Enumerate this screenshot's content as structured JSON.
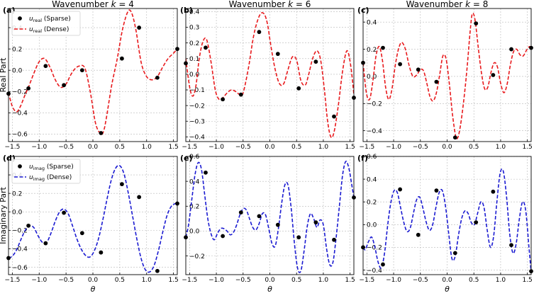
{
  "chart_data": [
    {
      "panel": "(a)",
      "type": "line",
      "title": "Wavenumber k = 4",
      "title_parts": [
        "Wavenumber ",
        "k",
        " = 4"
      ],
      "xlabel": "",
      "ylabel": "Real Part",
      "xlim": [
        -1.571,
        1.571
      ],
      "ylim": [
        -0.67,
        0.58
      ],
      "xticks": [
        -1.5,
        -1.0,
        -0.5,
        0.0,
        0.5,
        1.0,
        1.5
      ],
      "yticks": [
        -0.6,
        -0.4,
        -0.2,
        0.0,
        0.2,
        0.4
      ],
      "grid": true,
      "legend": "top-left",
      "dense": {
        "name": "u_real (Dense)",
        "name_parts": [
          "u",
          "real",
          " (Dense)"
        ],
        "color": "#e8191c",
        "x": [
          -1.571,
          -1.5,
          -1.42,
          -1.35,
          -1.27,
          -1.2,
          -1.1,
          -1.0,
          -0.9,
          -0.8,
          -0.7,
          -0.6,
          -0.5,
          -0.42,
          -0.34,
          -0.25,
          -0.15,
          -0.05,
          0.05,
          0.15,
          0.2,
          0.25,
          0.35,
          0.45,
          0.55,
          0.65,
          0.72,
          0.8,
          0.9,
          1.0,
          1.1,
          1.2,
          1.3,
          1.4,
          1.5,
          1.571
        ],
        "y": [
          -0.21,
          -0.34,
          -0.39,
          -0.34,
          -0.24,
          -0.16,
          -0.03,
          0.08,
          0.11,
          0.03,
          -0.09,
          -0.16,
          -0.13,
          -0.05,
          0.01,
          0.04,
          0.02,
          -0.2,
          -0.5,
          -0.6,
          -0.57,
          -0.45,
          -0.14,
          0.1,
          0.38,
          0.55,
          0.54,
          0.38,
          0.07,
          -0.06,
          -0.09,
          -0.06,
          0.03,
          0.11,
          0.16,
          0.2
        ]
      },
      "sparse": {
        "name": "u_real (Sparse)",
        "name_parts": [
          "u",
          "real",
          " (Sparse)"
        ],
        "color": "#000000",
        "x": [
          -1.571,
          -1.2,
          -0.88,
          -0.54,
          -0.2,
          0.15,
          0.54,
          0.86,
          1.2,
          1.571
        ],
        "y": [
          -0.22,
          -0.17,
          0.04,
          -0.14,
          0.0,
          -0.59,
          0.11,
          0.4,
          -0.07,
          0.2
        ]
      }
    },
    {
      "panel": "(b)",
      "type": "line",
      "title": "Wavenumber k = 6",
      "title_parts": [
        "Wavenumber ",
        "k",
        " = 6"
      ],
      "xlabel": "",
      "ylabel": "",
      "xlim": [
        -1.571,
        1.571
      ],
      "ylim": [
        -0.43,
        0.42
      ],
      "xticks": [
        -1.5,
        -1.0,
        -0.5,
        0.0,
        0.5,
        1.0,
        1.5
      ],
      "yticks": [
        -0.4,
        -0.3,
        -0.2,
        -0.1,
        0.0,
        0.1,
        0.2,
        0.3,
        0.4
      ],
      "grid": true,
      "legend": "",
      "dense": {
        "name": "",
        "color": "#e8191c",
        "x": [
          -1.571,
          -1.5,
          -1.44,
          -1.38,
          -1.32,
          -1.25,
          -1.18,
          -1.1,
          -1.02,
          -0.95,
          -0.88,
          -0.8,
          -0.72,
          -0.64,
          -0.56,
          -0.5,
          -0.4,
          -0.3,
          -0.2,
          -0.12,
          -0.05,
          0.02,
          0.1,
          0.18,
          0.26,
          0.34,
          0.42,
          0.5,
          0.58,
          0.66,
          0.72,
          0.8,
          0.88,
          0.95,
          1.02,
          1.08,
          1.14,
          1.2,
          1.28,
          1.36,
          1.44,
          1.51,
          1.571
        ],
        "y": [
          0.1,
          -0.08,
          -0.14,
          -0.07,
          0.1,
          0.21,
          0.22,
          0.08,
          -0.1,
          -0.16,
          -0.15,
          -0.12,
          -0.1,
          -0.11,
          -0.13,
          -0.12,
          0.04,
          0.25,
          0.37,
          0.39,
          0.33,
          0.18,
          0.03,
          -0.06,
          -0.06,
          0.03,
          0.11,
          0.09,
          -0.04,
          -0.07,
          -0.01,
          0.1,
          0.15,
          0.09,
          -0.1,
          -0.3,
          -0.4,
          -0.37,
          -0.2,
          0.02,
          0.15,
          0.06,
          -0.13
        ]
      },
      "sparse": {
        "name": "",
        "color": "#000000",
        "x": [
          -1.571,
          -1.2,
          -0.88,
          -0.54,
          -0.2,
          0.15,
          0.54,
          0.86,
          1.2,
          1.571
        ],
        "y": [
          0.07,
          0.17,
          -0.16,
          -0.13,
          0.27,
          0.13,
          -0.09,
          0.08,
          -0.27,
          -0.15
        ]
      }
    },
    {
      "panel": "(c)",
      "type": "line",
      "title": "Wavenumber k = 8",
      "title_parts": [
        "Wavenumber ",
        "k",
        " = 8"
      ],
      "xlabel": "",
      "ylabel": "",
      "xlim": [
        -1.571,
        1.571
      ],
      "ylim": [
        -0.48,
        0.5
      ],
      "xticks": [
        -1.5,
        -1.0,
        -0.5,
        0.0,
        0.5,
        1.0,
        1.5
      ],
      "yticks": [
        -0.4,
        -0.2,
        0.0,
        0.2,
        0.4
      ],
      "grid": true,
      "legend": "",
      "dense": {
        "name": "",
        "color": "#e8191c",
        "x": [
          -1.571,
          -1.51,
          -1.45,
          -1.39,
          -1.33,
          -1.27,
          -1.21,
          -1.15,
          -1.09,
          -1.03,
          -0.97,
          -0.91,
          -0.85,
          -0.78,
          -0.71,
          -0.64,
          -0.57,
          -0.5,
          -0.44,
          -0.38,
          -0.32,
          -0.26,
          -0.2,
          -0.14,
          -0.08,
          -0.02,
          0.04,
          0.1,
          0.16,
          0.2,
          0.25,
          0.31,
          0.37,
          0.43,
          0.47,
          0.52,
          0.58,
          0.64,
          0.7,
          0.76,
          0.82,
          0.88,
          0.94,
          1.0,
          1.06,
          1.12,
          1.18,
          1.24,
          1.3,
          1.36,
          1.42,
          1.48,
          1.54,
          1.571
        ],
        "y": [
          0.1,
          -0.12,
          -0.17,
          -0.04,
          0.15,
          0.22,
          0.12,
          -0.08,
          -0.17,
          -0.09,
          0.08,
          0.2,
          0.25,
          0.2,
          0.08,
          0.0,
          0.01,
          0.05,
          0.04,
          -0.05,
          -0.15,
          -0.18,
          -0.12,
          0.01,
          0.15,
          0.13,
          -0.05,
          -0.28,
          -0.44,
          -0.45,
          -0.36,
          -0.18,
          0.05,
          0.33,
          0.46,
          0.42,
          0.22,
          0.03,
          -0.09,
          -0.08,
          0.03,
          0.1,
          0.07,
          -0.05,
          -0.12,
          -0.06,
          0.08,
          0.18,
          0.2,
          0.16,
          0.15,
          0.19,
          0.22,
          0.2
        ]
      },
      "sparse": {
        "name": "",
        "color": "#000000",
        "x": [
          -1.571,
          -1.2,
          -0.88,
          -0.54,
          -0.2,
          0.15,
          0.54,
          0.86,
          1.2,
          1.571
        ],
        "y": [
          0.1,
          0.21,
          0.09,
          0.05,
          -0.04,
          -0.45,
          0.39,
          0.01,
          0.2,
          0.21
        ]
      }
    },
    {
      "panel": "(d)",
      "type": "line",
      "title": "",
      "xlabel": "θ",
      "ylabel": "Imaginary Part",
      "xlim": [
        -1.571,
        1.571
      ],
      "ylim": [
        -0.68,
        0.6
      ],
      "xticks": [
        -1.5,
        -1.0,
        -0.5,
        0.0,
        0.5,
        1.0,
        1.5
      ],
      "yticks": [
        -0.6,
        -0.4,
        -0.2,
        0.0,
        0.2,
        0.4
      ],
      "grid": true,
      "legend": "top-left",
      "dense": {
        "name": "u_imag (Dense)",
        "name_parts": [
          "u",
          "imag",
          " (Dense)"
        ],
        "color": "#1a1ad1",
        "x": [
          -1.571,
          -1.5,
          -1.42,
          -1.34,
          -1.26,
          -1.18,
          -1.1,
          -1.02,
          -0.94,
          -0.86,
          -0.78,
          -0.7,
          -0.62,
          -0.54,
          -0.46,
          -0.38,
          -0.3,
          -0.22,
          -0.14,
          -0.06,
          0.02,
          0.1,
          0.18,
          0.26,
          0.34,
          0.42,
          0.5,
          0.58,
          0.66,
          0.74,
          0.82,
          0.9,
          0.98,
          1.06,
          1.14,
          1.22,
          1.3,
          1.38,
          1.46,
          1.54,
          1.571
        ],
        "y": [
          -0.5,
          -0.48,
          -0.41,
          -0.3,
          -0.2,
          -0.15,
          -0.17,
          -0.26,
          -0.33,
          -0.33,
          -0.23,
          -0.1,
          0.0,
          0.03,
          -0.02,
          -0.15,
          -0.29,
          -0.4,
          -0.47,
          -0.49,
          -0.43,
          -0.3,
          -0.1,
          0.13,
          0.34,
          0.47,
          0.5,
          0.41,
          0.2,
          -0.05,
          -0.3,
          -0.51,
          -0.63,
          -0.65,
          -0.58,
          -0.42,
          -0.22,
          -0.04,
          0.06,
          0.09,
          0.09
        ]
      },
      "sparse": {
        "name": "u_imag (Sparse)",
        "name_parts": [
          "u",
          "imag",
          " (Sparse)"
        ],
        "color": "#000000",
        "x": [
          -1.571,
          -1.2,
          -0.88,
          -0.54,
          -0.2,
          0.15,
          0.54,
          0.86,
          1.2,
          1.571
        ],
        "y": [
          -0.5,
          -0.15,
          -0.34,
          -0.01,
          -0.23,
          -0.44,
          0.3,
          0.16,
          -0.64,
          0.09
        ]
      }
    },
    {
      "panel": "(e)",
      "type": "line",
      "title": "",
      "xlabel": "θ",
      "ylabel": "",
      "xlim": [
        -1.571,
        1.571
      ],
      "ylim": [
        -0.35,
        0.6
      ],
      "xticks": [
        -1.5,
        -1.0,
        -0.5,
        0.0,
        0.5,
        1.0,
        1.5
      ],
      "yticks": [
        -0.2,
        0.0,
        0.2,
        0.4,
        0.6
      ],
      "grid": true,
      "legend": "",
      "dense": {
        "name": "",
        "color": "#1a1ad1",
        "x": [
          -1.571,
          -1.52,
          -1.46,
          -1.4,
          -1.34,
          -1.28,
          -1.22,
          -1.16,
          -1.1,
          -1.04,
          -0.98,
          -0.92,
          -0.86,
          -0.8,
          -0.74,
          -0.68,
          -0.62,
          -0.56,
          -0.5,
          -0.44,
          -0.38,
          -0.32,
          -0.26,
          -0.2,
          -0.14,
          -0.08,
          -0.02,
          0.04,
          0.1,
          0.16,
          0.22,
          0.28,
          0.34,
          0.4,
          0.46,
          0.52,
          0.58,
          0.64,
          0.7,
          0.76,
          0.82,
          0.88,
          0.94,
          1.0,
          1.06,
          1.12,
          1.18,
          1.24,
          1.3,
          1.36,
          1.42,
          1.48,
          1.54,
          1.571
        ],
        "y": [
          -0.05,
          0.05,
          0.25,
          0.45,
          0.55,
          0.5,
          0.3,
          0.1,
          -0.02,
          -0.07,
          -0.02,
          0.02,
          0.02,
          0.0,
          -0.03,
          -0.01,
          0.05,
          0.13,
          0.18,
          0.17,
          0.1,
          0.03,
          0.01,
          0.06,
          0.14,
          0.13,
          0.02,
          -0.1,
          -0.12,
          0.02,
          0.22,
          0.37,
          0.37,
          0.18,
          -0.1,
          -0.3,
          -0.32,
          -0.16,
          0.04,
          0.14,
          0.1,
          0.03,
          0.09,
          0.05,
          -0.14,
          -0.27,
          -0.25,
          -0.05,
          0.2,
          0.45,
          0.56,
          0.5,
          0.35,
          0.27
        ]
      },
      "sparse": {
        "name": "",
        "color": "#000000",
        "x": [
          -1.571,
          -1.2,
          -0.88,
          -0.54,
          -0.2,
          0.15,
          0.54,
          0.86,
          1.2,
          1.571
        ],
        "y": [
          -0.05,
          0.47,
          -0.04,
          0.15,
          0.12,
          0.05,
          -0.05,
          0.07,
          -0.07,
          0.27
        ]
      }
    },
    {
      "panel": "(f)",
      "type": "line",
      "title": "",
      "xlabel": "θ",
      "ylabel": "",
      "xlim": [
        -1.571,
        1.571
      ],
      "ylim": [
        -0.44,
        0.6
      ],
      "xticks": [
        -1.5,
        -1.0,
        -0.5,
        0.0,
        0.5,
        1.0,
        1.5
      ],
      "yticks": [
        -0.4,
        -0.2,
        0.0,
        0.2,
        0.4,
        0.6
      ],
      "grid": true,
      "legend": "",
      "dense": {
        "name": "",
        "color": "#1a1ad1",
        "x": [
          -1.571,
          -1.53,
          -1.47,
          -1.41,
          -1.35,
          -1.29,
          -1.23,
          -1.17,
          -1.11,
          -1.05,
          -0.99,
          -0.93,
          -0.87,
          -0.81,
          -0.75,
          -0.69,
          -0.63,
          -0.57,
          -0.51,
          -0.45,
          -0.39,
          -0.33,
          -0.27,
          -0.21,
          -0.15,
          -0.09,
          -0.03,
          0.03,
          0.09,
          0.15,
          0.21,
          0.27,
          0.33,
          0.39,
          0.45,
          0.51,
          0.57,
          0.63,
          0.69,
          0.75,
          0.81,
          0.87,
          0.93,
          0.99,
          1.05,
          1.11,
          1.17,
          1.23,
          1.29,
          1.35,
          1.41,
          1.47,
          1.53,
          1.571
        ],
        "y": [
          -0.2,
          -0.22,
          -0.15,
          -0.11,
          -0.2,
          -0.33,
          -0.38,
          -0.25,
          0.0,
          0.2,
          0.3,
          0.28,
          0.15,
          0.02,
          -0.06,
          -0.03,
          0.1,
          0.22,
          0.24,
          0.14,
          0.02,
          -0.05,
          0.0,
          0.15,
          0.28,
          0.3,
          0.16,
          -0.08,
          -0.3,
          -0.28,
          -0.1,
          0.05,
          0.12,
          0.1,
          0.02,
          0.0,
          0.1,
          0.2,
          0.15,
          -0.05,
          -0.2,
          -0.1,
          0.2,
          0.45,
          0.47,
          0.25,
          -0.08,
          -0.25,
          -0.17,
          0.05,
          0.2,
          0.12,
          -0.2,
          -0.42
        ]
      },
      "sparse": {
        "name": "",
        "color": "#000000",
        "x": [
          -1.571,
          -1.2,
          -0.88,
          -0.54,
          -0.2,
          0.15,
          0.54,
          0.86,
          1.2,
          1.571
        ],
        "y": [
          -0.2,
          -0.35,
          0.31,
          -0.09,
          0.3,
          -0.25,
          0.02,
          0.29,
          -0.18,
          -0.41
        ]
      }
    }
  ]
}
